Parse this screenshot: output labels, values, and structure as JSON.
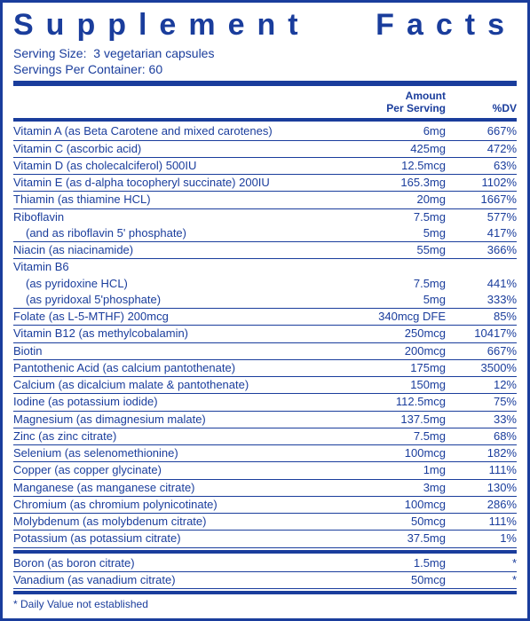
{
  "title": "Supplement Facts",
  "serving_size_label": "Serving Size:",
  "serving_size_value": "3 vegetarian capsules",
  "servings_per_container_label": "Servings Per Container:",
  "servings_per_container_value": "60",
  "header_amount_line1": "Amount",
  "header_amount_line2": "Per Serving",
  "header_dv": "%DV",
  "footnote": "* Daily Value not established",
  "colors": {
    "brand": "#1a3d9c",
    "background": "#ffffff"
  },
  "rows1": [
    {
      "name": "Vitamin A (as Beta Carotene and mixed carotenes)",
      "amount": "6mg",
      "dv": "667%"
    },
    {
      "name": "Vitamin C (ascorbic acid)",
      "amount": "425mg",
      "dv": "472%"
    },
    {
      "name": "Vitamin D (as cholecalciferol) 500IU",
      "amount": "12.5mcg",
      "dv": "63%"
    },
    {
      "name": "Vitamin E (as d-alpha tocopheryl succinate) 200IU",
      "amount": "165.3mg",
      "dv": "1102%"
    },
    {
      "name": "Thiamin (as thiamine HCL)",
      "amount": "20mg",
      "dv": "1667%"
    },
    {
      "name": "Riboflavin",
      "amount": "7.5mg",
      "dv": "577%",
      "noborder": true
    },
    {
      "name": "(and as riboflavin 5' phosphate)",
      "amount": "5mg",
      "dv": "417%",
      "sub": true
    },
    {
      "name": "Niacin (as niacinamide)",
      "amount": "55mg",
      "dv": "366%"
    },
    {
      "name": "Vitamin B6",
      "amount": "",
      "dv": "",
      "noborder": true
    },
    {
      "name": "(as pyridoxine HCL)",
      "amount": "7.5mg",
      "dv": "441%",
      "sub": true,
      "noborder": true
    },
    {
      "name": "(as pyridoxal 5'phosphate)",
      "amount": "5mg",
      "dv": "333%",
      "sub": true
    },
    {
      "name": "Folate (as L-5-MTHF) 200mcg",
      "amount": "340mcg DFE",
      "dv": "85%"
    },
    {
      "name": "Vitamin B12 (as methylcobalamin)",
      "amount": "250mcg",
      "dv": "10417%"
    },
    {
      "name": "Biotin",
      "amount": "200mcg",
      "dv": "667%"
    },
    {
      "name": "Pantothenic Acid (as calcium pantothenate)",
      "amount": "175mg",
      "dv": "3500%"
    },
    {
      "name": "Calcium (as dicalcium malate & pantothenate)",
      "amount": "150mg",
      "dv": "12%"
    },
    {
      "name": "Iodine (as potassium iodide)",
      "amount": "112.5mcg",
      "dv": "75%"
    },
    {
      "name": "Magnesium (as dimagnesium malate)",
      "amount": "137.5mg",
      "dv": "33%"
    },
    {
      "name": "Zinc (as zinc citrate)",
      "amount": "7.5mg",
      "dv": "68%"
    },
    {
      "name": "Selenium (as selenomethionine)",
      "amount": "100mcg",
      "dv": "182%"
    },
    {
      "name": "Copper (as copper glycinate)",
      "amount": "1mg",
      "dv": "111%"
    },
    {
      "name": "Manganese (as manganese citrate)",
      "amount": "3mg",
      "dv": "130%"
    },
    {
      "name": "Chromium (as chromium polynicotinate)",
      "amount": "100mcg",
      "dv": "286%"
    },
    {
      "name": "Molybdenum (as molybdenum citrate)",
      "amount": "50mcg",
      "dv": "111%"
    },
    {
      "name": "Potassium (as potassium citrate)",
      "amount": "37.5mg",
      "dv": "1%"
    }
  ],
  "rows2": [
    {
      "name": "Boron (as boron citrate)",
      "amount": "1.5mg",
      "dv": "*"
    },
    {
      "name": "Vanadium (as vanadium citrate)",
      "amount": "50mcg",
      "dv": "*"
    }
  ]
}
